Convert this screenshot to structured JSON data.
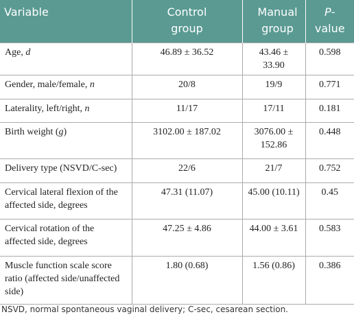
{
  "table": {
    "header": [
      "Variable",
      "Control group",
      "Manual group",
      [
        {
          "text": "P",
          "italic": true
        },
        {
          "text": "-value",
          "italic": false
        }
      ]
    ],
    "rows": [
      [
        [
          {
            "text": "Age, ",
            "italic": false
          },
          {
            "text": "d",
            "italic": true
          }
        ],
        "46.89 ± 36.52",
        "43.46 ± 33.90",
        "0.598"
      ],
      [
        [
          {
            "text": "Gender, male/female, ",
            "italic": false
          },
          {
            "text": "n",
            "italic": true
          }
        ],
        "20/8",
        "19/9",
        "0.771"
      ],
      [
        [
          {
            "text": "Laterality, left/right, ",
            "italic": false
          },
          {
            "text": "n",
            "italic": true
          }
        ],
        "11/17",
        "17/11",
        "0.181"
      ],
      [
        [
          {
            "text": "Birth weight (",
            "italic": false
          },
          {
            "text": "g",
            "italic": true
          },
          {
            "text": ")",
            "italic": false
          }
        ],
        "3102.00 ± 187.02",
        "3076.00 ± 152.86",
        "0.448"
      ],
      [
        "Delivery type (NSVD/C-sec)",
        "22/6",
        "21/7",
        "0.752"
      ],
      [
        "Cervical lateral flexion of the affected side, degrees",
        "47.31 (11.07)",
        "45.00 (10.11)",
        "0.45"
      ],
      [
        "Cervical rotation of the affected side, degrees",
        "47.25 ± 4.86",
        "44.00 ± 3.61",
        "0.583"
      ],
      [
        "Muscle function scale score ratio (affected side/unaffected side)",
        "1.80 (0.68)",
        "1.56 (0.86)",
        "0.386"
      ]
    ],
    "footnote": "NSVD, normal spontaneous vaginal delivery; C-sec, cesarean section."
  }
}
